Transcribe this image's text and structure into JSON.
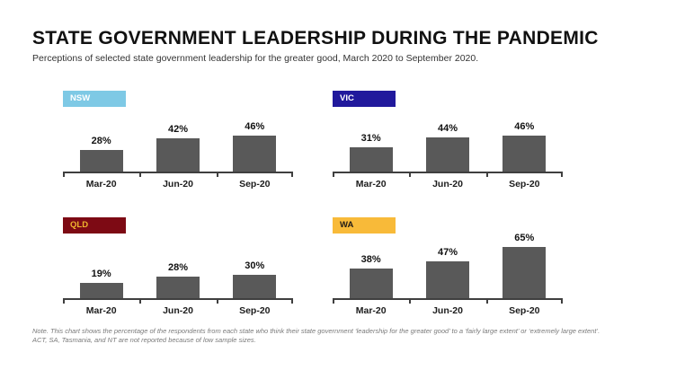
{
  "header": {
    "title": "STATE GOVERNMENT LEADERSHIP DURING THE PANDEMIC",
    "subtitle": "Perceptions of selected state government leadership for the greater good, March 2020 to September 2020."
  },
  "footnote": "Note. This chart shows the percentage of the respondents from each state who think their state government ‘leadership for the greater good’ to a ‘fairly large extent’ or ‘extremely large extent’. ACT, SA, Tasmania, and NT are not reported because of low sample sizes.",
  "colors": {
    "bar": "#595959",
    "axis": "#3f3f3f",
    "nsw_tag": "#7ec9e5",
    "vic_tag": "#21199c",
    "qld_tag": "#7d0a14",
    "qld_tag_text": "#efb42e",
    "wa_tag": "#f8ba39"
  },
  "chart_data": [
    {
      "type": "bar",
      "state": "NSW",
      "tag_bg": "#7ec9e5",
      "tag_text": "#ffffff",
      "categories": [
        "Mar-20",
        "Jun-20",
        "Sep-20"
      ],
      "values": [
        28,
        42,
        46
      ],
      "unit": "%",
      "ylim": [
        0,
        100
      ]
    },
    {
      "type": "bar",
      "state": "VIC",
      "tag_bg": "#21199c",
      "tag_text": "#ffffff",
      "categories": [
        "Mar-20",
        "Jun-20",
        "Sep-20"
      ],
      "values": [
        31,
        44,
        46
      ],
      "unit": "%",
      "ylim": [
        0,
        100
      ]
    },
    {
      "type": "bar",
      "state": "QLD",
      "tag_bg": "#7d0a14",
      "tag_text": "#efb42e",
      "categories": [
        "Mar-20",
        "Jun-20",
        "Sep-20"
      ],
      "values": [
        19,
        28,
        30
      ],
      "unit": "%",
      "ylim": [
        0,
        100
      ]
    },
    {
      "type": "bar",
      "state": "WA",
      "tag_bg": "#f8ba39",
      "tag_text": "#1f1a17",
      "categories": [
        "Mar-20",
        "Jun-20",
        "Sep-20"
      ],
      "values": [
        38,
        47,
        65
      ],
      "unit": "%",
      "ylim": [
        0,
        100
      ]
    }
  ]
}
